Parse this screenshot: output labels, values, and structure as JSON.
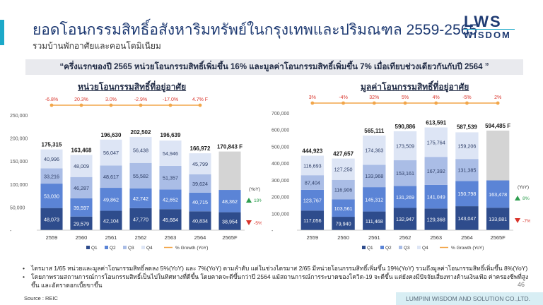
{
  "header": {
    "title": "ยอดโอนกรรมสิทธิ์อสังหาริมทรัพย์ในกรุงเทพและปริมณฑล 2559-2565",
    "subtitle": "รวมบ้านพักอาศัยและคอนโดมิเนียม"
  },
  "logo": {
    "line1": "LWS",
    "line2": "WISDOM"
  },
  "banner": "“ครึ่งแรกของปี 2565 หน่วยโอนกรรมสิทธิ์เพิ่มขึ้น 16% และมูลค่าโอนกรรมสิทธิ์เพิ่มขึ้น 7% เมื่อเทียบช่วงเดียวกันกับปี 2564 ”",
  "colors": {
    "q1": "#2e4c8c",
    "q2": "#5b84d6",
    "q3": "#aabde6",
    "q4": "#dde5f5",
    "forecast": "#d4d4d4",
    "growth": "#f2a64a",
    "up": "#2e9e4f",
    "down": "#d9342b"
  },
  "chart_data": [
    {
      "type": "bar",
      "title": "หน่วยโอนกรรมสิทธิ์ที่อยู่อาศัย",
      "categories": [
        "2559",
        "2560",
        "2561",
        "2562",
        "2563",
        "2564",
        "2565F"
      ],
      "ylim": [
        0,
        250000
      ],
      "yticks": [
        0,
        50000,
        100000,
        150000,
        200000,
        250000
      ],
      "ytick_labels": [
        "-",
        "50,000",
        "100,000",
        "150,000",
        "200,000",
        "250,000"
      ],
      "series": [
        {
          "name": "Q1",
          "values": [
            48073,
            29579,
            42104,
            47770,
            45684,
            40834,
            38954
          ],
          "labels": [
            "48,073",
            "29,579",
            "42,104",
            "47,770",
            "45,684",
            "40,834",
            "38,954"
          ]
        },
        {
          "name": "Q2",
          "values": [
            53030,
            39597,
            49862,
            42742,
            42652,
            40715,
            48362
          ],
          "labels": [
            "53,030",
            "39,597",
            "49,862",
            "42,742",
            "42,652",
            "40,715",
            "48,362"
          ]
        },
        {
          "name": "Q3",
          "values": [
            33216,
            46287,
            48617,
            55582,
            51357,
            39624,
            null
          ],
          "labels": [
            "33,216",
            "46,287",
            "48,617",
            "55,582",
            "51,357",
            "39,624",
            ""
          ]
        },
        {
          "name": "Q4",
          "values": [
            40996,
            48009,
            56047,
            56438,
            54946,
            45799,
            null
          ],
          "labels": [
            "40,996",
            "48,009",
            "56,047",
            "56,438",
            "54,946",
            "45,799",
            ""
          ]
        }
      ],
      "totals": [
        175315,
        163468,
        196630,
        202502,
        196639,
        166972,
        170843
      ],
      "total_labels": [
        "175,315",
        "163,468",
        "196,630",
        "202,502",
        "196,639",
        "166,972",
        "170,843 F"
      ],
      "forecast_total": 170843,
      "growth": [
        -6.8,
        20.3,
        3.0,
        -2.9,
        -17.0,
        4.7
      ],
      "growth_labels": [
        "-6.8%",
        "20.3%",
        "3.0%",
        "-2.9%",
        "-17.0%",
        "4.7% F"
      ],
      "legend": [
        "Q1",
        "Q2",
        "Q3",
        "Q4",
        "% Growth (YoY)"
      ],
      "yoy": {
        "label": "(YoY)",
        "up": "19%",
        "down": "-5%"
      }
    },
    {
      "type": "bar",
      "title": "มูลค่าโอนกรรมสิทธิ์ที่อยู่อาศัย",
      "categories": [
        "2559",
        "2560",
        "2561",
        "2562",
        "2563",
        "2564",
        "2565F"
      ],
      "ylim": [
        0,
        700000
      ],
      "yticks": [
        0,
        100000,
        200000,
        300000,
        400000,
        500000,
        600000,
        700000
      ],
      "ytick_labels": [
        "-",
        "100,000",
        "200,000",
        "300,000",
        "400,000",
        "500,000",
        "600,000",
        "700,000"
      ],
      "series": [
        {
          "name": "Q1",
          "values": [
            117056,
            79940,
            111468,
            132947,
            129368,
            143047,
            133681
          ],
          "labels": [
            "117,056",
            "79,940",
            "111,468",
            "132,947",
            "129,368",
            "143,047",
            "133,681"
          ]
        },
        {
          "name": "Q2",
          "values": [
            123767,
            103561,
            145312,
            131269,
            141049,
            150798,
            163478
          ],
          "labels": [
            "123,767",
            "103,561",
            "145,312",
            "131,269",
            "141,049",
            "150,798",
            "163,478"
          ]
        },
        {
          "name": "Q3",
          "values": [
            87404,
            116906,
            133968,
            153161,
            167392,
            131385,
            null
          ],
          "labels": [
            "87,404",
            "116,906",
            "133,968",
            "153,161",
            "167,392",
            "131,385",
            ""
          ]
        },
        {
          "name": "Q4",
          "values": [
            116693,
            127250,
            174363,
            173509,
            175764,
            159206,
            null
          ],
          "labels": [
            "116,693",
            "127,250",
            "174,363",
            "173,509",
            "175,764",
            "159,206",
            ""
          ]
        }
      ],
      "totals": [
        444923,
        427657,
        565111,
        590886,
        613591,
        587539,
        594485
      ],
      "total_labels": [
        "444,923",
        "427,657",
        "565,111",
        "590,886",
        "613,591",
        "587,539",
        "594,485 F"
      ],
      "forecast_total": 594485,
      "growth": [
        3,
        -4,
        32,
        5,
        4,
        -5,
        2
      ],
      "growth_labels": [
        "3%",
        "-4%",
        "32%",
        "5%",
        "4%",
        "-5%",
        "2%"
      ],
      "legend": [
        "Q1",
        "Q2",
        "Q3",
        "Q4",
        "% Growth (YoY)"
      ],
      "yoy": {
        "label": "(YoY)",
        "up": "8%",
        "down": "-7%"
      }
    }
  ],
  "notes": [
    "ไตรมาส 1/65 หน่วยและมูลค่าโอนกรรมสิทธิ์ลดลง  5%(YoY) และ 7%(YoY) ตามลำดับ  แต่ในช่วงไตรมาส 2/65 มีหน่วยโอนกรรมสิทธิ์เพิ่มขึ้น  19%(YoY) รวมถึงมูลค่าโอนกรรมสิทธิ์เพิ่มขึ้น 8%(YoY)",
    "โดยภาพรวมสถานการณ์การโอนกรรมสิทธิ์เป็นไปในทิศทางที่ดีขึ้น  โดยคาดจะดีขึ้นกว่าปี 2564 แม้สถานการณ์การระบาดของโควิด-19 จะดีขึ้น แต่ยังคงมีปัจจัยเสี่ยงทางด้านเงินเฟ้อ ค่าครองชีพที่สูงขึ้น และอัตราดอกเบี้ยขาขึ้น"
  ],
  "source": "Source : REIC",
  "page_number": "46",
  "footer": "LUMPINI WISDOM AND SOLUTION CO.,LTD."
}
